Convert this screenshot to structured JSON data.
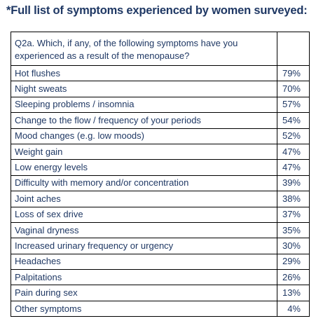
{
  "title": "*Full list of symptoms experienced by women surveyed:",
  "question": "Q2a. Which, if any, of the following symptoms have you experienced as a result of the menopause?",
  "question_value": "",
  "rows": [
    {
      "symptom": "Hot flushes",
      "percent": "79%"
    },
    {
      "symptom": "Night sweats",
      "percent": "70%"
    },
    {
      "symptom": "Sleeping problems / insomnia",
      "percent": "57%"
    },
    {
      "symptom": "Change to the flow / frequency of your periods",
      "percent": "54%"
    },
    {
      "symptom": "Mood changes (e.g. low moods)",
      "percent": "52%"
    },
    {
      "symptom": "Weight gain",
      "percent": "47%"
    },
    {
      "symptom": "Low energy levels",
      "percent": "47%"
    },
    {
      "symptom": "Difficulty with memory and/or concentration",
      "percent": "39%"
    },
    {
      "symptom": "Joint aches",
      "percent": "38%"
    },
    {
      "symptom": "Loss of sex drive",
      "percent": "37%"
    },
    {
      "symptom": "Vaginal dryness",
      "percent": "35%"
    },
    {
      "symptom": "Increased urinary frequency or urgency",
      "percent": "30%"
    },
    {
      "symptom": "Headaches",
      "percent": "29%"
    },
    {
      "symptom": "Palpitations",
      "percent": "26%"
    },
    {
      "symptom": "Pain during sex",
      "percent": "13%"
    },
    {
      "symptom": "Other symptoms",
      "percent": "4%"
    }
  ]
}
